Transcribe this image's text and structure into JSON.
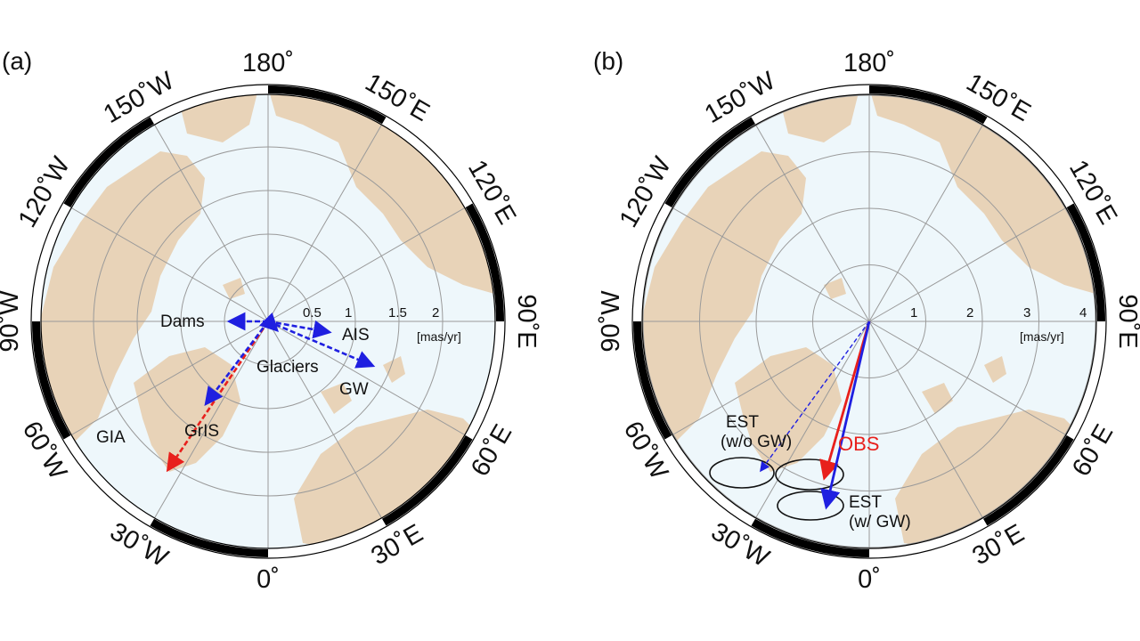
{
  "panels": [
    {
      "id": "a",
      "label": "(a)",
      "longitude_labels": [
        "180˚",
        "150˚E",
        "120˚E",
        "90˚E",
        "60˚E",
        "30˚E",
        "0˚",
        "30˚W",
        "60˚W",
        "90˚W",
        "120˚W",
        "150˚W"
      ],
      "scale": {
        "ticks": [
          "0.5",
          "1",
          "1.5",
          "2"
        ],
        "unit": "[mas/yr]"
      },
      "vectors": [
        {
          "label": "GIA",
          "color": "#e8201c",
          "style": "dashed",
          "magnitude": 2.03,
          "direction_deg": 236
        },
        {
          "label": "GrIS",
          "color": "#1f1fe0",
          "style": "dashed",
          "magnitude": 1.16,
          "direction_deg": 233
        },
        {
          "label": "Dams",
          "color": "#1f1fe0",
          "style": "dashed",
          "magnitude": 0.42,
          "direction_deg": 180
        },
        {
          "label": "AIS",
          "color": "#1f1fe0",
          "style": "dashed",
          "magnitude": 0.69,
          "direction_deg": 350
        },
        {
          "label": "GW",
          "color": "#1f1fe0",
          "style": "dashed",
          "magnitude": 1.28,
          "direction_deg": 337
        },
        {
          "label": "Glaciers",
          "color": "#1f1fe0",
          "style": "dashed",
          "magnitude": 0.12,
          "direction_deg": 315
        }
      ]
    },
    {
      "id": "b",
      "label": "(b)",
      "longitude_labels": [
        "180˚",
        "150˚E",
        "120˚E",
        "90˚E",
        "60˚E",
        "30˚E",
        "0˚",
        "30˚W",
        "60˚W",
        "90˚W",
        "120˚W",
        "150˚W"
      ],
      "scale": {
        "ticks": [
          "1",
          "2",
          "3",
          "4"
        ],
        "unit": "[mas/yr]"
      },
      "vectors": [
        {
          "label": "OBS",
          "color": "#e8201c",
          "style": "solid",
          "magnitude": 2.84,
          "direction_deg": 254
        },
        {
          "label": "EST\n(w/ GW)",
          "color": "#1f1fe0",
          "style": "solid",
          "magnitude": 3.33,
          "direction_deg": 257
        },
        {
          "label": "EST\n(w/o GW)",
          "color": "#1f1fe0",
          "style": "dashed_thin",
          "magnitude": 3.25,
          "direction_deg": 234
        }
      ]
    }
  ],
  "colors": {
    "land": "#e8d3b8",
    "ocean": "#eef7fb",
    "grid": "#9a9a9a",
    "border": "#000000"
  }
}
